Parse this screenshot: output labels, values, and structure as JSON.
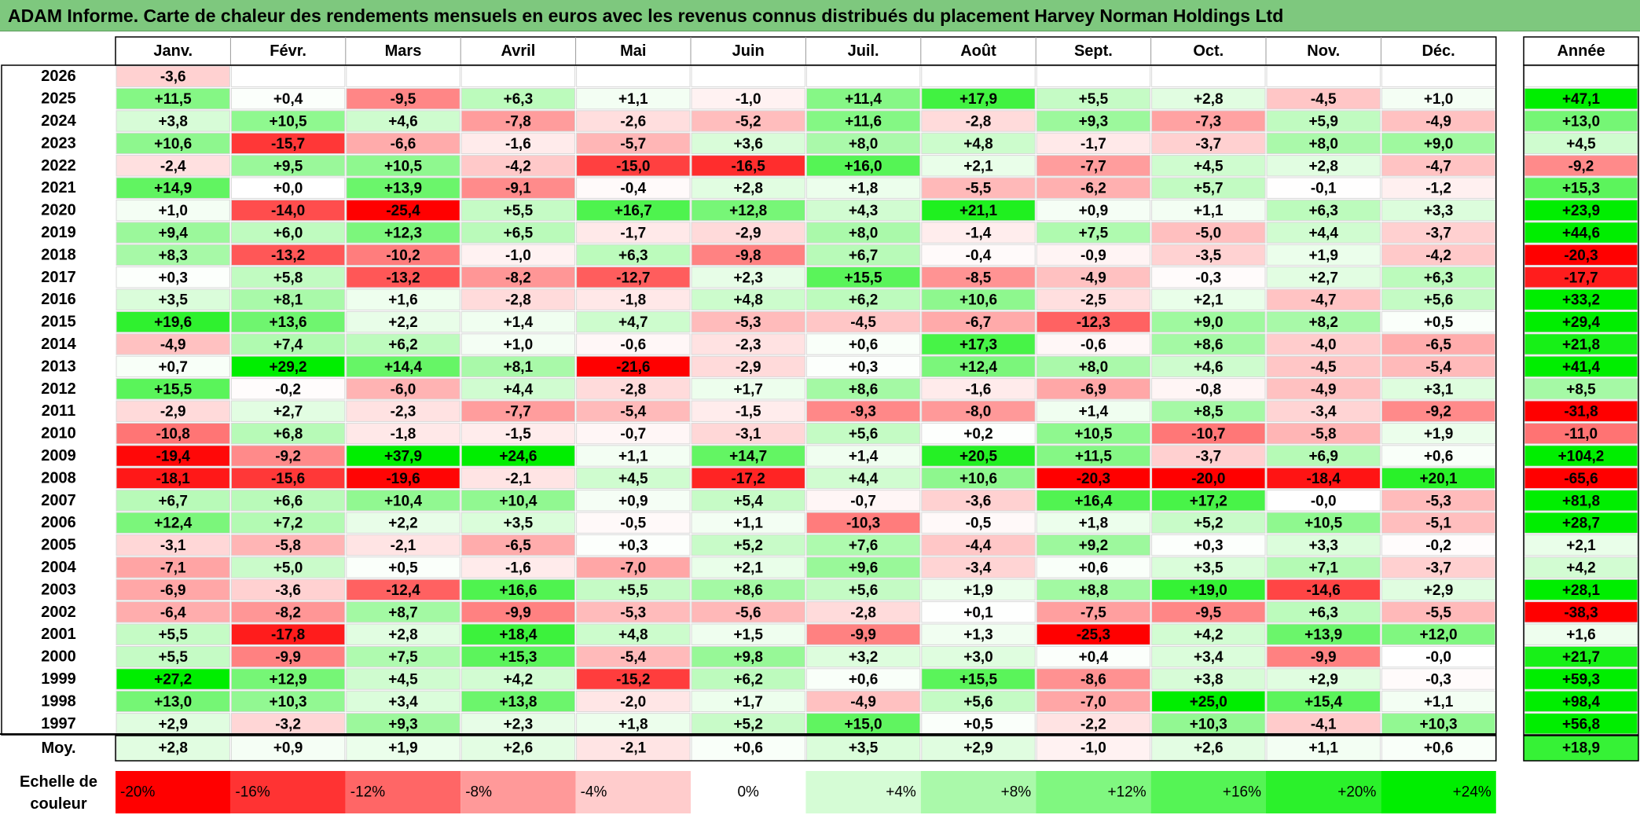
{
  "title": "ADAM Informe. Carte de chaleur des rendements mensuels en euros avec les revenus connus distribués du placement Harvey Norman Holdings Ltd",
  "colors": {
    "title_bg": "#7ec87e",
    "negative": "#ff0000",
    "positive": "#00ee00",
    "neutral": "#ffffff"
  },
  "chart_data": {
    "type": "heatmap",
    "columns": [
      "Janv.",
      "Févr.",
      "Mars",
      "Avril",
      "Mai",
      "Juin",
      "Juil.",
      "Août",
      "Sept.",
      "Oct.",
      "Nov.",
      "Déc."
    ],
    "year_label": "Année",
    "avg_label": "Moy.",
    "scale_label": "Echelle de couleur",
    "rows": [
      {
        "year": "2026",
        "values": [
          "-3,6",
          "",
          "",
          "",
          "",
          "",
          "",
          "",
          "",
          "",
          "",
          ""
        ],
        "annual": ""
      },
      {
        "year": "2025",
        "values": [
          "+11,5",
          "+0,4",
          "-9,5",
          "+6,3",
          "+1,1",
          "-1,0",
          "+11,4",
          "+17,9",
          "+5,5",
          "+2,8",
          "-4,5",
          "+1,0"
        ],
        "annual": "+47,1"
      },
      {
        "year": "2024",
        "values": [
          "+3,8",
          "+10,5",
          "+4,6",
          "-7,8",
          "-2,6",
          "-5,2",
          "+11,6",
          "-2,8",
          "+9,3",
          "-7,3",
          "+5,9",
          "-4,9"
        ],
        "annual": "+13,0"
      },
      {
        "year": "2023",
        "values": [
          "+10,6",
          "-15,7",
          "-6,6",
          "-1,6",
          "-5,7",
          "+3,6",
          "+8,0",
          "+4,8",
          "-1,7",
          "-3,7",
          "+8,0",
          "+9,0"
        ],
        "annual": "+4,5"
      },
      {
        "year": "2022",
        "values": [
          "-2,4",
          "+9,5",
          "+10,5",
          "-4,2",
          "-15,0",
          "-16,5",
          "+16,0",
          "+2,1",
          "-7,7",
          "+4,5",
          "+2,8",
          "-4,7"
        ],
        "annual": "-9,2"
      },
      {
        "year": "2021",
        "values": [
          "+14,9",
          "+0,0",
          "+13,9",
          "-9,1",
          "-0,4",
          "+2,8",
          "+1,8",
          "-5,5",
          "-6,2",
          "+5,7",
          "-0,1",
          "-1,2"
        ],
        "annual": "+15,3"
      },
      {
        "year": "2020",
        "values": [
          "+1,0",
          "-14,0",
          "-25,4",
          "+5,5",
          "+16,7",
          "+12,8",
          "+4,3",
          "+21,1",
          "+0,9",
          "+1,1",
          "+6,3",
          "+3,3"
        ],
        "annual": "+23,9"
      },
      {
        "year": "2019",
        "values": [
          "+9,4",
          "+6,0",
          "+12,3",
          "+6,5",
          "-1,7",
          "-2,9",
          "+8,0",
          "-1,4",
          "+7,5",
          "-5,0",
          "+4,4",
          "-3,7"
        ],
        "annual": "+44,6"
      },
      {
        "year": "2018",
        "values": [
          "+8,3",
          "-13,2",
          "-10,2",
          "-1,0",
          "+6,3",
          "-9,8",
          "+6,7",
          "-0,4",
          "-0,9",
          "-3,5",
          "+1,9",
          "-4,2"
        ],
        "annual": "-20,3"
      },
      {
        "year": "2017",
        "values": [
          "+0,3",
          "+5,8",
          "-13,2",
          "-8,2",
          "-12,7",
          "+2,3",
          "+15,5",
          "-8,5",
          "-4,9",
          "-0,3",
          "+2,7",
          "+6,3"
        ],
        "annual": "-17,7"
      },
      {
        "year": "2016",
        "values": [
          "+3,5",
          "+8,1",
          "+1,6",
          "-2,8",
          "-1,8",
          "+4,8",
          "+6,2",
          "+10,6",
          "-2,5",
          "+2,1",
          "-4,7",
          "+5,6"
        ],
        "annual": "+33,2"
      },
      {
        "year": "2015",
        "values": [
          "+19,6",
          "+13,6",
          "+2,2",
          "+1,4",
          "+4,7",
          "-5,3",
          "-4,5",
          "-6,7",
          "-12,3",
          "+9,0",
          "+8,2",
          "+0,5"
        ],
        "annual": "+29,4"
      },
      {
        "year": "2014",
        "values": [
          "-4,9",
          "+7,4",
          "+6,2",
          "+1,0",
          "-0,6",
          "-2,3",
          "+0,6",
          "+17,3",
          "-0,6",
          "+8,6",
          "-4,0",
          "-6,5"
        ],
        "annual": "+21,8"
      },
      {
        "year": "2013",
        "values": [
          "+0,7",
          "+29,2",
          "+14,4",
          "+8,1",
          "-21,6",
          "-2,9",
          "+0,3",
          "+12,4",
          "+8,0",
          "+4,6",
          "-4,5",
          "-5,4"
        ],
        "annual": "+41,4"
      },
      {
        "year": "2012",
        "values": [
          "+15,5",
          "-0,2",
          "-6,0",
          "+4,4",
          "-2,8",
          "+1,7",
          "+8,6",
          "-1,6",
          "-6,9",
          "-0,8",
          "-4,9",
          "+3,1"
        ],
        "annual": "+8,5"
      },
      {
        "year": "2011",
        "values": [
          "-2,9",
          "+2,7",
          "-2,3",
          "-7,7",
          "-5,4",
          "-1,5",
          "-9,3",
          "-8,0",
          "+1,4",
          "+8,5",
          "-3,4",
          "-9,2"
        ],
        "annual": "-31,8"
      },
      {
        "year": "2010",
        "values": [
          "-10,8",
          "+6,8",
          "-1,8",
          "-1,5",
          "-0,7",
          "-3,1",
          "+5,6",
          "+0,2",
          "+10,5",
          "-10,7",
          "-5,8",
          "+1,9"
        ],
        "annual": "-11,0"
      },
      {
        "year": "2009",
        "values": [
          "-19,4",
          "-9,2",
          "+37,9",
          "+24,6",
          "+1,1",
          "+14,7",
          "+1,4",
          "+20,5",
          "+11,5",
          "-3,7",
          "+6,9",
          "+0,6"
        ],
        "annual": "+104,2"
      },
      {
        "year": "2008",
        "values": [
          "-18,1",
          "-15,6",
          "-19,6",
          "-2,1",
          "+4,5",
          "-17,2",
          "+4,4",
          "+10,6",
          "-20,3",
          "-20,0",
          "-18,4",
          "+20,1"
        ],
        "annual": "-65,6"
      },
      {
        "year": "2007",
        "values": [
          "+6,7",
          "+6,6",
          "+10,4",
          "+10,4",
          "+0,9",
          "+5,4",
          "-0,7",
          "-3,6",
          "+16,4",
          "+17,2",
          "-0,0",
          "-5,3"
        ],
        "annual": "+81,8"
      },
      {
        "year": "2006",
        "values": [
          "+12,4",
          "+7,2",
          "+2,2",
          "+3,5",
          "-0,5",
          "+1,1",
          "-10,3",
          "-0,5",
          "+1,8",
          "+5,2",
          "+10,5",
          "-5,1"
        ],
        "annual": "+28,7"
      },
      {
        "year": "2005",
        "values": [
          "-3,1",
          "-5,8",
          "-2,1",
          "-6,5",
          "+0,3",
          "+5,2",
          "+7,6",
          "-4,4",
          "+9,2",
          "+0,3",
          "+3,3",
          "-0,2"
        ],
        "annual": "+2,1"
      },
      {
        "year": "2004",
        "values": [
          "-7,1",
          "+5,0",
          "+0,5",
          "-1,6",
          "-7,0",
          "+2,1",
          "+9,6",
          "-3,4",
          "+0,6",
          "+3,5",
          "+7,1",
          "-3,7"
        ],
        "annual": "+4,2"
      },
      {
        "year": "2003",
        "values": [
          "-6,9",
          "-3,6",
          "-12,4",
          "+16,6",
          "+5,5",
          "+8,6",
          "+5,6",
          "+1,9",
          "+8,8",
          "+19,0",
          "-14,6",
          "+2,9"
        ],
        "annual": "+28,1"
      },
      {
        "year": "2002",
        "values": [
          "-6,4",
          "-8,2",
          "+8,7",
          "-9,9",
          "-5,3",
          "-5,6",
          "-2,8",
          "+0,1",
          "-7,5",
          "-9,5",
          "+6,3",
          "-5,5"
        ],
        "annual": "-38,3"
      },
      {
        "year": "2001",
        "values": [
          "+5,5",
          "-17,8",
          "+2,8",
          "+18,4",
          "+4,8",
          "+1,5",
          "-9,9",
          "+1,3",
          "-25,3",
          "+4,2",
          "+13,9",
          "+12,0"
        ],
        "annual": "+1,6"
      },
      {
        "year": "2000",
        "values": [
          "+5,5",
          "-9,9",
          "+7,5",
          "+15,3",
          "-5,4",
          "+9,8",
          "+3,2",
          "+3,0",
          "+0,4",
          "+3,4",
          "-9,9",
          "-0,0"
        ],
        "annual": "+21,7"
      },
      {
        "year": "1999",
        "values": [
          "+27,2",
          "+12,9",
          "+4,5",
          "+4,2",
          "-15,2",
          "+6,2",
          "+0,6",
          "+15,5",
          "-8,6",
          "+3,8",
          "+2,9",
          "-0,3"
        ],
        "annual": "+59,3"
      },
      {
        "year": "1998",
        "values": [
          "+13,0",
          "+10,3",
          "+3,4",
          "+13,8",
          "-2,0",
          "+1,7",
          "-4,9",
          "+5,6",
          "-7,0",
          "+25,0",
          "+15,4",
          "+1,1"
        ],
        "annual": "+98,4"
      },
      {
        "year": "1997",
        "values": [
          "+2,9",
          "-3,2",
          "+9,3",
          "+2,3",
          "+1,8",
          "+5,2",
          "+15,0",
          "+0,5",
          "-2,2",
          "+10,3",
          "-4,1",
          "+10,3"
        ],
        "annual": "+56,8"
      }
    ],
    "averages": [
      "+2,8",
      "+0,9",
      "+1,9",
      "+2,6",
      "-2,1",
      "+0,6",
      "+3,5",
      "+2,9",
      "-1,0",
      "+2,6",
      "+1,1",
      "+0,6"
    ],
    "average_annual": "+18,9",
    "scale": [
      "-20%",
      "-16%",
      "-12%",
      "-8%",
      "-4%",
      "0%",
      "+4%",
      "+8%",
      "+12%",
      "+16%",
      "+20%",
      "+24%"
    ],
    "color_scale_range": [
      -20,
      24
    ]
  }
}
